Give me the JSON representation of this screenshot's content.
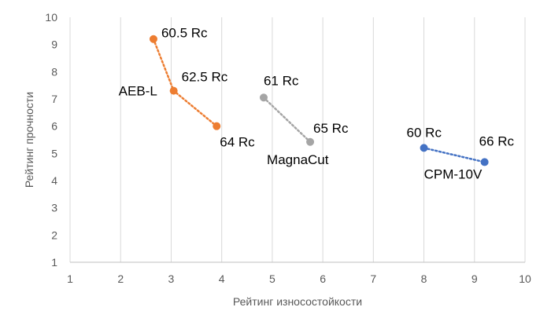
{
  "chart_data": {
    "type": "scatter",
    "title": "",
    "xlabel": "Рейтинг износостойкости",
    "ylabel": "Рейтинг прочности",
    "xlim": [
      1,
      10
    ],
    "ylim": [
      1,
      10
    ],
    "x_ticks": [
      "1",
      "2",
      "3",
      "4",
      "5",
      "6",
      "7",
      "8",
      "9",
      "10"
    ],
    "y_ticks": [
      "1",
      "2",
      "3",
      "4",
      "5",
      "6",
      "7",
      "8",
      "9",
      "10"
    ],
    "grid": "vertical",
    "legend": "none",
    "series": [
      {
        "name": "AEB-L",
        "color": "#ED7D31",
        "points": [
          {
            "x": 2.65,
            "y": 9.2,
            "label": "60.5 Rc"
          },
          {
            "x": 3.05,
            "y": 7.3,
            "label": "62.5 Rc"
          },
          {
            "x": 3.9,
            "y": 6.0,
            "label": "64 Rc"
          }
        ]
      },
      {
        "name": "MagnaCut",
        "color": "#A5A5A5",
        "points": [
          {
            "x": 4.83,
            "y": 7.05,
            "label": "61 Rc"
          },
          {
            "x": 5.75,
            "y": 5.42,
            "label": "65 Rc"
          }
        ]
      },
      {
        "name": "CPM-10V",
        "color": "#4472C4",
        "points": [
          {
            "x": 8.0,
            "y": 5.2,
            "label": "60 Rc"
          },
          {
            "x": 9.2,
            "y": 4.68,
            "label": "66 Rc"
          }
        ]
      }
    ]
  }
}
